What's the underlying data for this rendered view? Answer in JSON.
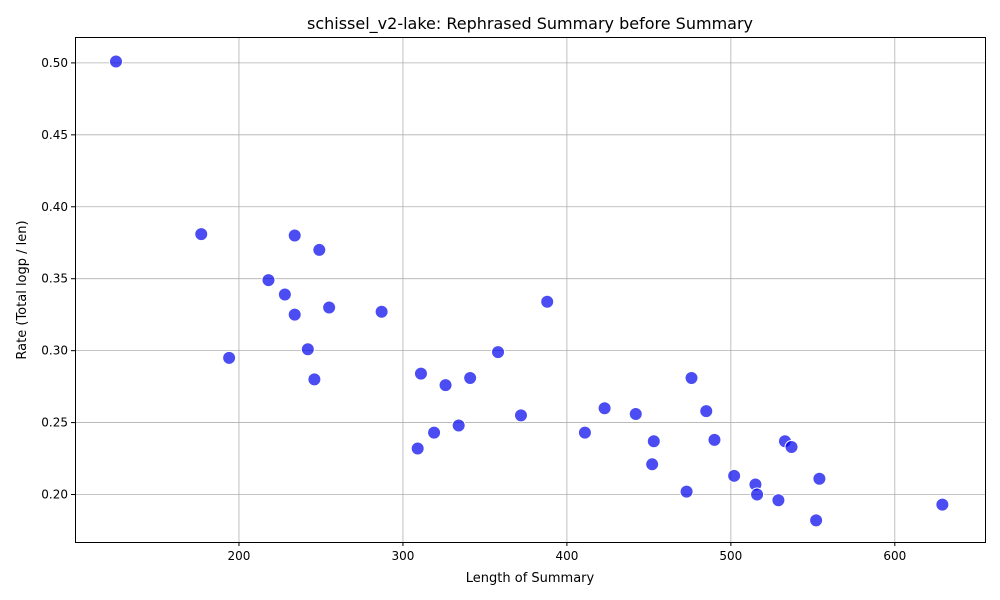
{
  "chart_data": {
    "type": "scatter",
    "title": "schissel_v2-lake: Rephrased Summary before Summary",
    "xlabel": "Length of Summary",
    "ylabel": "Rate (Total logp / len)",
    "xlim": [
      100,
      655
    ],
    "ylim": [
      0.167,
      0.518
    ],
    "xticks": [
      200,
      300,
      400,
      500,
      600
    ],
    "yticks": [
      0.2,
      0.25,
      0.3,
      0.35,
      0.4,
      0.45,
      0.5
    ],
    "xtick_labels": [
      "200",
      "300",
      "400",
      "500",
      "600"
    ],
    "ytick_labels": [
      "0.20",
      "0.25",
      "0.30",
      "0.35",
      "0.40",
      "0.45",
      "0.50"
    ],
    "grid": true,
    "color": "#0000ee",
    "points": [
      {
        "x": 125,
        "y": 0.501
      },
      {
        "x": 177,
        "y": 0.381
      },
      {
        "x": 194,
        "y": 0.295
      },
      {
        "x": 218,
        "y": 0.349
      },
      {
        "x": 228,
        "y": 0.339
      },
      {
        "x": 234,
        "y": 0.38
      },
      {
        "x": 234,
        "y": 0.325
      },
      {
        "x": 242,
        "y": 0.301
      },
      {
        "x": 246,
        "y": 0.28
      },
      {
        "x": 249,
        "y": 0.37
      },
      {
        "x": 255,
        "y": 0.33
      },
      {
        "x": 287,
        "y": 0.327
      },
      {
        "x": 309,
        "y": 0.232
      },
      {
        "x": 311,
        "y": 0.284
      },
      {
        "x": 319,
        "y": 0.243
      },
      {
        "x": 326,
        "y": 0.276
      },
      {
        "x": 334,
        "y": 0.248
      },
      {
        "x": 341,
        "y": 0.281
      },
      {
        "x": 358,
        "y": 0.299
      },
      {
        "x": 372,
        "y": 0.255
      },
      {
        "x": 388,
        "y": 0.334
      },
      {
        "x": 411,
        "y": 0.243
      },
      {
        "x": 423,
        "y": 0.26
      },
      {
        "x": 442,
        "y": 0.256
      },
      {
        "x": 452,
        "y": 0.221
      },
      {
        "x": 453,
        "y": 0.237
      },
      {
        "x": 473,
        "y": 0.202
      },
      {
        "x": 476,
        "y": 0.281
      },
      {
        "x": 485,
        "y": 0.258
      },
      {
        "x": 490,
        "y": 0.238
      },
      {
        "x": 502,
        "y": 0.213
      },
      {
        "x": 515,
        "y": 0.207
      },
      {
        "x": 516,
        "y": 0.2
      },
      {
        "x": 529,
        "y": 0.196
      },
      {
        "x": 533,
        "y": 0.237
      },
      {
        "x": 537,
        "y": 0.233
      },
      {
        "x": 552,
        "y": 0.182
      },
      {
        "x": 554,
        "y": 0.211
      },
      {
        "x": 629,
        "y": 0.193
      }
    ]
  }
}
